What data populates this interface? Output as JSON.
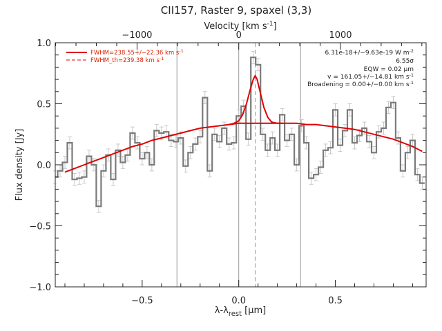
{
  "chart_data": {
    "type": "line",
    "title": "CII157, Raster 9, spaxel (3,3)",
    "xlabel": "λ-λrest [μm]",
    "xlabel_parts": {
      "pre": "λ-λ",
      "sub": "rest",
      "post": " [μm]"
    },
    "ylabel": "Flux density [Jy]",
    "top_axis_label": "Velocity [km s-1]",
    "top_axis_label_parts": {
      "pre": "Velocity [km s",
      "sup": "-1",
      "post": "]"
    },
    "xlim": [
      -0.95,
      0.97
    ],
    "ylim": [
      -1.0,
      1.0
    ],
    "x_ticks": [
      {
        "value": -0.5,
        "label": "−0.5"
      },
      {
        "value": 0.0,
        "label": "0.0"
      },
      {
        "value": 0.5,
        "label": "0.5"
      }
    ],
    "y_ticks": [
      {
        "value": -1.0,
        "label": "−1.0"
      },
      {
        "value": -0.5,
        "label": "−0.5"
      },
      {
        "value": 0.0,
        "label": "0.0"
      },
      {
        "value": 0.5,
        "label": "0.5"
      },
      {
        "value": 1.0,
        "label": "1.0"
      }
    ],
    "velocity_ticks": [
      {
        "value": -1000,
        "label": "−1000"
      },
      {
        "value": 0,
        "label": "0"
      },
      {
        "value": 1000,
        "label": "1000"
      }
    ],
    "km_per_um_factor": 1899,
    "legend": [
      {
        "parts": {
          "pre": "FWHM=238.55+/−22.36 km s",
          "sup": "-1"
        },
        "style": "solid",
        "color": "#e00000"
      },
      {
        "parts": {
          "pre": "FWHM_th=239.38 km s",
          "sup": "-1"
        },
        "style": "dashed",
        "color": "#e00000"
      }
    ],
    "annotations": [
      {
        "parts": {
          "pre": "6.31e-18+/−9.63e-19 W m",
          "sup": "-2"
        }
      },
      {
        "parts": {
          "pre": "6.55σ"
        }
      },
      {
        "parts": {
          "pre": "EQW = 0.02 μm"
        }
      },
      {
        "parts": {
          "pre": "v = 161.05+/−14.81 km s",
          "sup": "-1"
        }
      },
      {
        "parts": {
          "pre": "Broadening = 0.00+/−0.00 km s",
          "sup": "-1"
        }
      }
    ],
    "vertical_lines": [
      {
        "x": -0.32,
        "style": "solid"
      },
      {
        "x": 0.0,
        "style": "solid"
      },
      {
        "x": 0.32,
        "style": "solid"
      },
      {
        "x": 0.085,
        "style": "dashed"
      }
    ],
    "series": [
      {
        "kind": "step",
        "color": "#7a7a7a",
        "x": [
          -0.95,
          -0.925,
          -0.9,
          -0.875,
          -0.85,
          -0.825,
          -0.8,
          -0.775,
          -0.75,
          -0.725,
          -0.7,
          -0.675,
          -0.65,
          -0.625,
          -0.6,
          -0.575,
          -0.55,
          -0.525,
          -0.5,
          -0.475,
          -0.45,
          -0.425,
          -0.4,
          -0.375,
          -0.35,
          -0.325,
          -0.3,
          -0.275,
          -0.25,
          -0.225,
          -0.2,
          -0.175,
          -0.15,
          -0.125,
          -0.1,
          -0.075,
          -0.05,
          -0.025,
          0.0,
          0.025,
          0.05,
          0.075,
          0.1,
          0.125,
          0.15,
          0.175,
          0.2,
          0.225,
          0.25,
          0.275,
          0.3,
          0.325,
          0.35,
          0.375,
          0.4,
          0.425,
          0.45,
          0.475,
          0.5,
          0.525,
          0.55,
          0.575,
          0.6,
          0.625,
          0.65,
          0.675,
          0.7,
          0.725,
          0.75,
          0.775,
          0.8,
          0.825,
          0.85,
          0.875,
          0.9,
          0.925,
          0.95
        ],
        "y": [
          -0.1,
          -0.05,
          0.02,
          0.18,
          -0.12,
          -0.11,
          -0.1,
          0.07,
          0.0,
          -0.34,
          -0.05,
          0.08,
          -0.12,
          0.12,
          0.02,
          0.08,
          0.26,
          0.18,
          0.05,
          0.1,
          0.0,
          0.28,
          0.26,
          0.27,
          0.2,
          0.19,
          0.22,
          -0.01,
          0.1,
          0.17,
          0.23,
          0.55,
          -0.05,
          0.25,
          0.19,
          0.3,
          0.17,
          0.18,
          0.4,
          0.48,
          0.21,
          0.88,
          0.82,
          0.25,
          0.12,
          0.22,
          0.12,
          0.41,
          0.2,
          0.25,
          0.0,
          0.32,
          0.18,
          -0.11,
          -0.08,
          -0.02,
          0.12,
          0.14,
          0.45,
          0.16,
          0.28,
          0.45,
          0.18,
          0.24,
          0.3,
          0.19,
          0.1,
          0.27,
          0.3,
          0.47,
          0.51,
          0.22,
          -0.05,
          0.1,
          0.2,
          -0.08,
          -0.15
        ]
      },
      {
        "kind": "error_bars",
        "color": "#c8c8c8",
        "error": 0.05
      },
      {
        "kind": "line",
        "name": "",
        "color": "#e00000",
        "description_model": "baseline",
        "x": [
          -0.9,
          -0.85,
          -0.8,
          -0.75,
          -0.7,
          -0.65,
          -0.6,
          -0.55,
          -0.5,
          -0.45,
          -0.4,
          -0.35,
          -0.3,
          -0.25,
          -0.2,
          -0.15,
          -0.1,
          -0.05,
          0.0,
          0.05,
          0.1,
          0.15,
          0.2,
          0.25,
          0.3,
          0.35,
          0.4,
          0.45,
          0.5,
          0.55,
          0.6,
          0.65,
          0.7,
          0.75,
          0.8,
          0.85,
          0.9,
          0.95
        ],
        "y": [
          -0.06,
          -0.03,
          0.0,
          0.03,
          0.06,
          0.09,
          0.12,
          0.15,
          0.17,
          0.2,
          0.22,
          0.24,
          0.26,
          0.28,
          0.3,
          0.31,
          0.32,
          0.33,
          0.34,
          0.34,
          0.34,
          0.34,
          0.34,
          0.34,
          0.34,
          0.33,
          0.33,
          0.32,
          0.31,
          0.3,
          0.29,
          0.27,
          0.25,
          0.23,
          0.21,
          0.18,
          0.15,
          0.11
        ]
      },
      {
        "kind": "line",
        "color": "#e00000",
        "x": [
          -0.05,
          -0.025,
          0.0,
          0.02,
          0.04,
          0.06,
          0.075,
          0.085,
          0.095,
          0.11,
          0.13,
          0.15,
          0.17,
          0.2,
          0.23
        ],
        "y": [
          0.33,
          0.34,
          0.36,
          0.41,
          0.5,
          0.62,
          0.7,
          0.73,
          0.7,
          0.6,
          0.47,
          0.39,
          0.35,
          0.34,
          0.34
        ]
      }
    ]
  }
}
